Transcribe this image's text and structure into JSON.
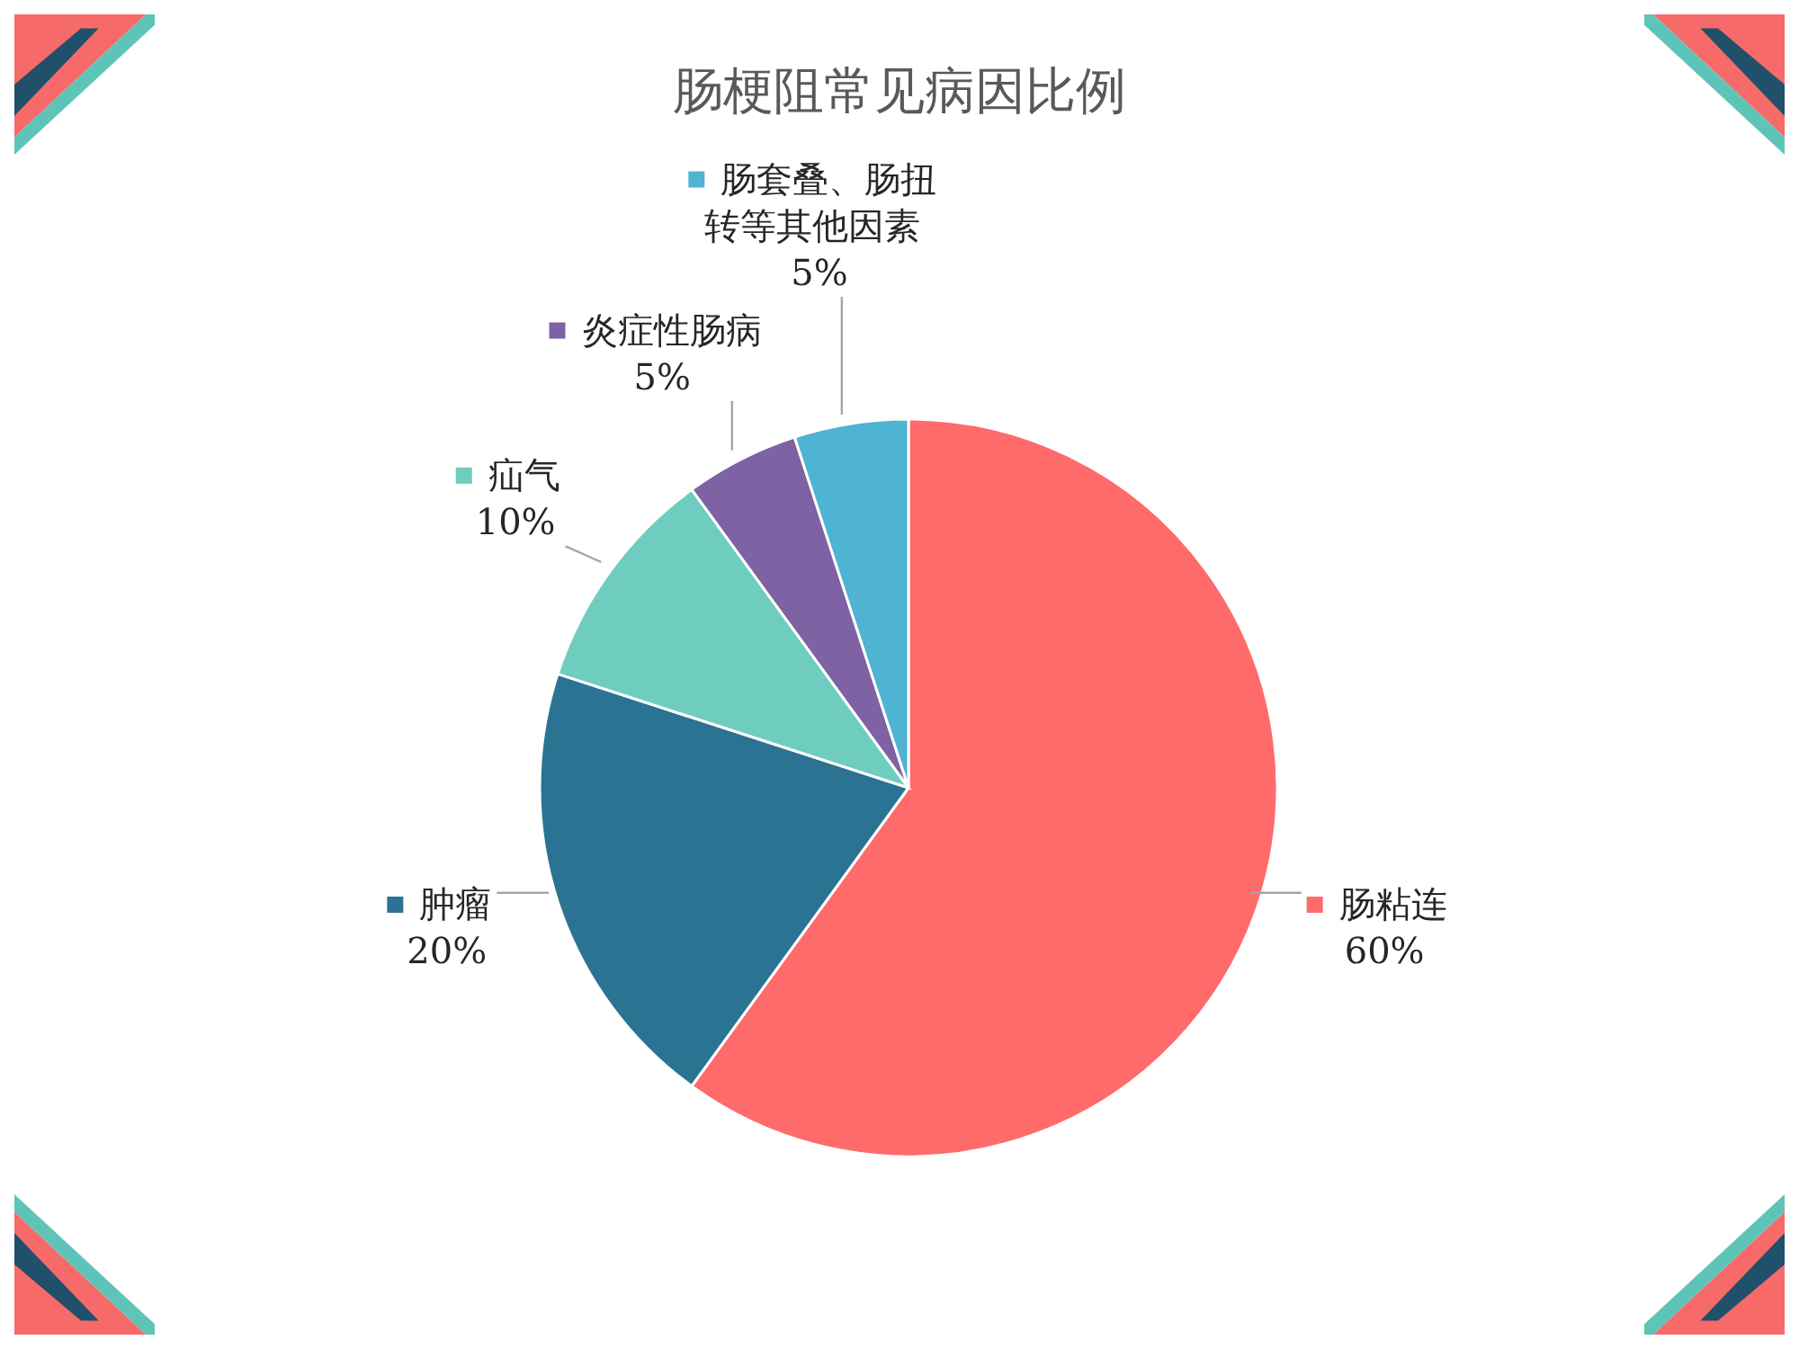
{
  "chart_data": {
    "type": "pie",
    "title": "肠梗阻常见病因比例",
    "categories": [
      "肠粘连",
      "肿瘤",
      "疝气",
      "炎症性肠病",
      "肠套叠、肠扭转等其他因素"
    ],
    "values": [
      60,
      20,
      10,
      5,
      5
    ],
    "colors": [
      "#ff6b6b",
      "#2b7393",
      "#6ecdbf",
      "#7e62a3",
      "#4fb3d2"
    ],
    "value_labels": [
      "60%",
      "20%",
      "10%",
      "5%",
      "5%"
    ],
    "legend": "top"
  }
}
